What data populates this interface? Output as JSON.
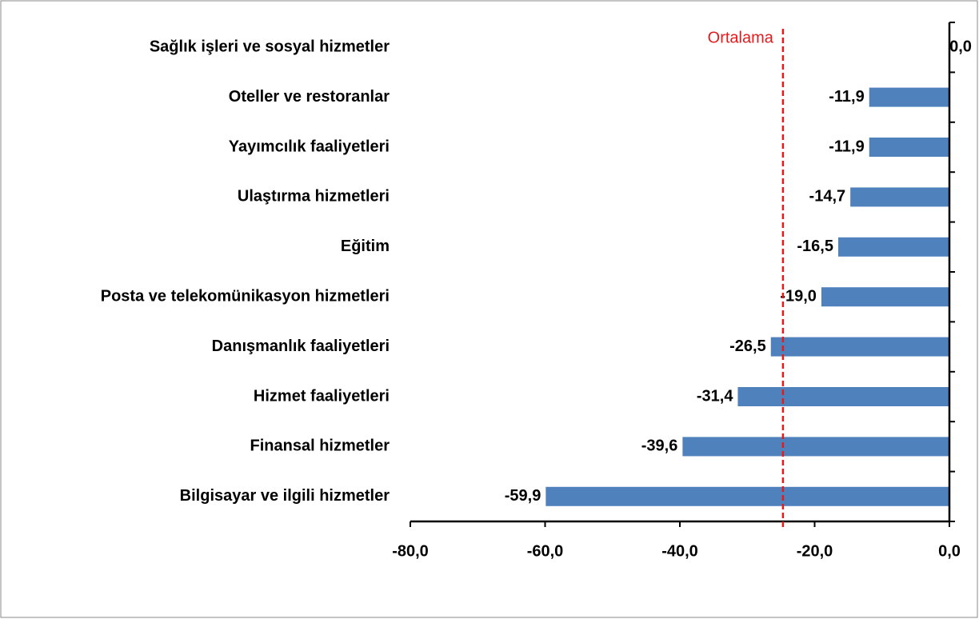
{
  "chart_data": {
    "type": "bar",
    "orientation": "horizontal",
    "categories": [
      "Sağlık işleri ve sosyal hizmetler",
      "Oteller ve restoranlar",
      "Yayımcılık faaliyetleri",
      "Ulaştırma hizmetleri",
      "Eğitim",
      "Posta ve telekomünikasyon hizmetleri",
      "Danışmanlık faaliyetleri",
      "Hizmet faaliyetleri",
      "Finansal hizmetler",
      "Bilgisayar ve ilgili hizmetler"
    ],
    "values": [
      0.0,
      -11.9,
      -11.9,
      -14.7,
      -16.5,
      -19.0,
      -26.5,
      -31.4,
      -39.6,
      -59.9
    ],
    "value_labels": [
      "0,0",
      "-11,9",
      "-11,9",
      "-14,7",
      "-16,5",
      "-19,0",
      "-26,5",
      "-31,4",
      "-39,6",
      "-59,9"
    ],
    "color": "#4f81bd",
    "xlim": [
      -80,
      0
    ],
    "xticks": [
      {
        "value": -80,
        "label": "-80,0"
      },
      {
        "value": -60,
        "label": "-60,0"
      },
      {
        "value": -40,
        "label": "-40,0"
      },
      {
        "value": -20,
        "label": "-20,0"
      },
      {
        "value": 0,
        "label": "0,0"
      }
    ],
    "average": {
      "label": "Ortalama",
      "value": -24.7,
      "color": "#e41a1c"
    }
  }
}
